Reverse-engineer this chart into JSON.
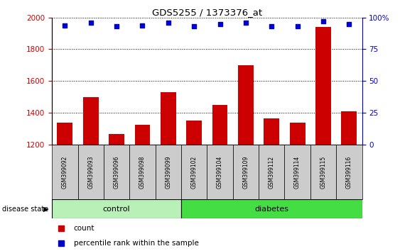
{
  "title": "GDS5255 / 1373376_at",
  "samples": [
    "GSM399092",
    "GSM399093",
    "GSM399096",
    "GSM399098",
    "GSM399099",
    "GSM399102",
    "GSM399104",
    "GSM399109",
    "GSM399112",
    "GSM399114",
    "GSM399115",
    "GSM399116"
  ],
  "counts": [
    1335,
    1500,
    1265,
    1325,
    1530,
    1350,
    1450,
    1700,
    1365,
    1335,
    1940,
    1410
  ],
  "percentiles": [
    94,
    96,
    93,
    94,
    96,
    93,
    95,
    96,
    93,
    93,
    97,
    95
  ],
  "ylim_left": [
    1200,
    2000
  ],
  "ylim_right": [
    0,
    100
  ],
  "yticks_left": [
    1200,
    1400,
    1600,
    1800,
    2000
  ],
  "yticks_right": [
    0,
    25,
    50,
    75,
    100
  ],
  "control_count": 5,
  "diabetes_count": 7,
  "bar_color": "#cc0000",
  "dot_color": "#0000cc",
  "control_bg": "#b8f0b8",
  "diabetes_bg": "#44dd44",
  "control_label": "control",
  "diabetes_label": "diabetes",
  "legend_count_label": "count",
  "legend_percentile_label": "percentile rank within the sample",
  "disease_state_label": "disease state",
  "tick_color_left": "#cc0000",
  "tick_color_right": "#0000cc",
  "grid_color": "black",
  "xlabel_bg": "#cccccc"
}
